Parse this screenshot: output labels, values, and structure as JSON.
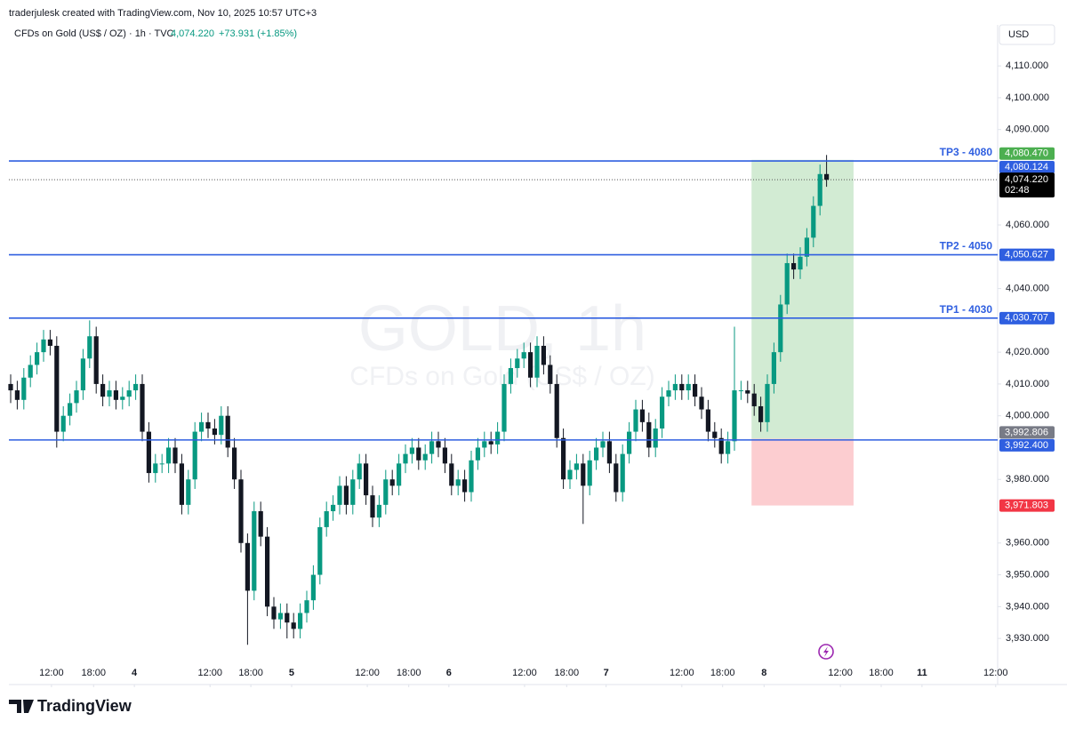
{
  "chart_data": {
    "type": "candlestick",
    "credit": "traderjulesk created with TradingView.com, Nov 10, 2025 10:57 UTC+3",
    "symbol": "CFDs on Gold (US$ / OZ) · 1h · TVC",
    "last": "4,074.220",
    "change": "+73.931 (+1.85%)",
    "currency": "USD",
    "watermark": "GOLD, 1h",
    "watermark_sub": "CFDs on Gold (US$ / OZ)",
    "brand": "TradingView",
    "up_color": "#089981",
    "down_color": "#131722",
    "level_color": "#2f5fe0",
    "ylim": [
      3915.5,
      4122.9
    ],
    "yticks": [
      {
        "value": 4110,
        "label": "4,110.000"
      },
      {
        "value": 4100,
        "label": "4,100.000"
      },
      {
        "value": 4090,
        "label": "4,090.000"
      },
      {
        "value": 4060,
        "label": "4,060.000"
      },
      {
        "value": 4040,
        "label": "4,040.000"
      },
      {
        "value": 4020,
        "label": "4,020.000"
      },
      {
        "value": 4010,
        "label": "4,010.000"
      },
      {
        "value": 4000,
        "label": "4,000.000"
      },
      {
        "value": 3980,
        "label": "3,980.000"
      },
      {
        "value": 3960,
        "label": "3,960.000"
      },
      {
        "value": 3950,
        "label": "3,950.000"
      },
      {
        "value": 3940,
        "label": "3,940.000"
      },
      {
        "value": 3930,
        "label": "3,930.000"
      }
    ],
    "xlim": [
      -0.3,
      150
    ],
    "xticks": [
      {
        "value": 6.2,
        "label": "12:00"
      },
      {
        "value": 12.6,
        "label": "18:00"
      },
      {
        "value": 18.8,
        "label": "4"
      },
      {
        "value": 30.3,
        "label": "12:00"
      },
      {
        "value": 36.5,
        "label": "18:00"
      },
      {
        "value": 42.7,
        "label": "5"
      },
      {
        "value": 54.2,
        "label": "12:00"
      },
      {
        "value": 60.5,
        "label": "18:00"
      },
      {
        "value": 66.6,
        "label": "6"
      },
      {
        "value": 78.1,
        "label": "12:00"
      },
      {
        "value": 84.5,
        "label": "18:00"
      },
      {
        "value": 90.5,
        "label": "7"
      },
      {
        "value": 102,
        "label": "12:00"
      },
      {
        "value": 108.2,
        "label": "18:00"
      },
      {
        "value": 114.5,
        "label": "8"
      },
      {
        "value": 126.1,
        "label": "12:00"
      },
      {
        "value": 132.3,
        "label": "18:00"
      },
      {
        "value": 138.5,
        "label": "11"
      },
      {
        "value": 149.7,
        "label": "12:00"
      }
    ],
    "levels": [
      {
        "name": "TP3 - 4080",
        "value": 4080.124,
        "label": "4,080.124"
      },
      {
        "name": "TP2 - 4050",
        "value": 4050.627,
        "label": "4,050.627"
      },
      {
        "name": "TP1 - 4030",
        "value": 4030.707,
        "label": "4,030.707"
      },
      {
        "value": 3992.4,
        "label": "3,992.400"
      }
    ],
    "position": {
      "x": [
        112.6,
        128.1
      ],
      "target": 4080.47,
      "target_label": "4,080.470",
      "target_color": "#4caf50",
      "entry": 3992.806,
      "entry_label": "3,992.806",
      "entry_color": "#787b86",
      "stop": 3971.803,
      "stop_label": "3,971.803",
      "stop_color": "#f23645"
    },
    "last_price": {
      "value": 4074.22,
      "label": "4,074.220",
      "countdown": "02:48"
    },
    "ohlc": [
      [
        4010,
        4013,
        4004,
        4008
      ],
      [
        4008,
        4011,
        4002,
        4005
      ],
      [
        4005,
        4015,
        4002,
        4012
      ],
      [
        4012,
        4019,
        4009,
        4016
      ],
      [
        4016,
        4023,
        4013,
        4020
      ],
      [
        4020,
        4027,
        4017,
        4024
      ],
      [
        4024,
        4027,
        4019,
        4022
      ],
      [
        4022,
        4025,
        3990,
        3995
      ],
      [
        3995,
        4003,
        3992,
        4000
      ],
      [
        4000,
        4007,
        3997,
        4004
      ],
      [
        4004,
        4011,
        4001,
        4008
      ],
      [
        4008,
        4021,
        4005,
        4018
      ],
      [
        4018,
        4030,
        4015,
        4025
      ],
      [
        4025,
        4028,
        4007,
        4010
      ],
      [
        4010,
        4013,
        4003,
        4006
      ],
      [
        4006,
        4011,
        4003,
        4008
      ],
      [
        4008,
        4011,
        4002,
        4005
      ],
      [
        4005,
        4009,
        4002,
        4006
      ],
      [
        4006,
        4011,
        4003,
        4008
      ],
      [
        4008,
        4013,
        4005,
        4010
      ],
      [
        4010,
        4013,
        3992,
        3995
      ],
      [
        3995,
        3998,
        3979,
        3982
      ],
      [
        3982,
        3988,
        3979,
        3985
      ],
      [
        3985,
        3988,
        3982,
        3985
      ],
      [
        3985,
        3993,
        3982,
        3990
      ],
      [
        3990,
        3993,
        3982,
        3985
      ],
      [
        3985,
        3988,
        3969,
        3972
      ],
      [
        3972,
        3983,
        3969,
        3980
      ],
      [
        3980,
        3998,
        3977,
        3995
      ],
      [
        3995,
        4001,
        3992,
        3998
      ],
      [
        3998,
        4001,
        3993,
        3996
      ],
      [
        3996,
        3999,
        3991,
        3994
      ],
      [
        3994,
        4003,
        3991,
        4000
      ],
      [
        4000,
        4003,
        3987,
        3990
      ],
      [
        3990,
        3993,
        3977,
        3980
      ],
      [
        3980,
        3983,
        3957,
        3960
      ],
      [
        3960,
        3963,
        3928,
        3945
      ],
      [
        3945,
        3973,
        3942,
        3970
      ],
      [
        3970,
        3973,
        3959,
        3962
      ],
      [
        3962,
        3965,
        3937,
        3940
      ],
      [
        3940,
        3943,
        3933,
        3936
      ],
      [
        3936,
        3941,
        3933,
        3938
      ],
      [
        3938,
        3941,
        3930,
        3935
      ],
      [
        3935,
        3938,
        3930,
        3933
      ],
      [
        3933,
        3941,
        3930,
        3938
      ],
      [
        3938,
        3945,
        3935,
        3942
      ],
      [
        3942,
        3953,
        3939,
        3950
      ],
      [
        3950,
        3968,
        3947,
        3965
      ],
      [
        3965,
        3973,
        3962,
        3970
      ],
      [
        3970,
        3975,
        3967,
        3972
      ],
      [
        3972,
        3981,
        3969,
        3978
      ],
      [
        3978,
        3981,
        3969,
        3972
      ],
      [
        3972,
        3983,
        3969,
        3980
      ],
      [
        3980,
        3988,
        3977,
        3985
      ],
      [
        3985,
        3988,
        3972,
        3975
      ],
      [
        3975,
        3978,
        3965,
        3968
      ],
      [
        3968,
        3975,
        3965,
        3972
      ],
      [
        3972,
        3983,
        3969,
        3980
      ],
      [
        3980,
        3983,
        3975,
        3978
      ],
      [
        3978,
        3988,
        3975,
        3985
      ],
      [
        3985,
        3991,
        3982,
        3988
      ],
      [
        3988,
        3993,
        3985,
        3990
      ],
      [
        3990,
        3993,
        3983,
        3986
      ],
      [
        3986,
        3991,
        3983,
        3988
      ],
      [
        3988,
        3995,
        3985,
        3992
      ],
      [
        3992,
        3995,
        3987,
        3990
      ],
      [
        3990,
        3993,
        3982,
        3985
      ],
      [
        3985,
        3988,
        3975,
        3978
      ],
      [
        3978,
        3983,
        3975,
        3980
      ],
      [
        3980,
        3983,
        3973,
        3976
      ],
      [
        3976,
        3989,
        3973,
        3986
      ],
      [
        3986,
        3993,
        3983,
        3990
      ],
      [
        3990,
        3995,
        3987,
        3992
      ],
      [
        3992,
        3995,
        3988,
        3991
      ],
      [
        3991,
        3998,
        3988,
        3995
      ],
      [
        3995,
        4013,
        3992,
        4010
      ],
      [
        4010,
        4018,
        4007,
        4015
      ],
      [
        4015,
        4021,
        4012,
        4018
      ],
      [
        4018,
        4023,
        4015,
        4020
      ],
      [
        4020,
        4023,
        4009,
        4012
      ],
      [
        4012,
        4025,
        4009,
        4022
      ],
      [
        4022,
        4025,
        4013,
        4016
      ],
      [
        4016,
        4019,
        4007,
        4010
      ],
      [
        4010,
        4013,
        3990,
        3993
      ],
      [
        3993,
        3996,
        3977,
        3980
      ],
      [
        3980,
        3986,
        3977,
        3983
      ],
      [
        3983,
        3988,
        3980,
        3985
      ],
      [
        3985,
        3988,
        3966,
        3978
      ],
      [
        3978,
        3989,
        3975,
        3986
      ],
      [
        3986,
        3993,
        3983,
        3990
      ],
      [
        3990,
        3995,
        3987,
        3992
      ],
      [
        3992,
        3995,
        3982,
        3985
      ],
      [
        3985,
        3988,
        3973,
        3976
      ],
      [
        3976,
        3991,
        3973,
        3988
      ],
      [
        3988,
        3998,
        3985,
        3995
      ],
      [
        3995,
        4005,
        3992,
        4002
      ],
      [
        4002,
        4005,
        3995,
        3998
      ],
      [
        3998,
        4001,
        3987,
        3990
      ],
      [
        3990,
        3999,
        3987,
        3996
      ],
      [
        3996,
        4009,
        3993,
        4006
      ],
      [
        4006,
        4011,
        4003,
        4008
      ],
      [
        4008,
        4013,
        4005,
        4010
      ],
      [
        4010,
        4013,
        4005,
        4008
      ],
      [
        4008,
        4013,
        4005,
        4010
      ],
      [
        4010,
        4013,
        4003,
        4006
      ],
      [
        4006,
        4009,
        3999,
        4002
      ],
      [
        4002,
        4005,
        3992,
        3995
      ],
      [
        3995,
        3998,
        3990,
        3993
      ],
      [
        3993,
        3996,
        3985,
        3988
      ],
      [
        3988,
        3995,
        3985,
        3992
      ],
      [
        3992,
        4028,
        3989,
        4008
      ],
      [
        4008,
        4011,
        4005,
        4008
      ],
      [
        4008,
        4011,
        4004,
        4007
      ],
      [
        4007,
        4010,
        4000,
        4003
      ],
      [
        4003,
        4006,
        3995,
        3998
      ],
      [
        3998,
        4013,
        3995,
        4010
      ],
      [
        4010,
        4023,
        4007,
        4020
      ],
      [
        4020,
        4038,
        4017,
        4035
      ],
      [
        4035,
        4051,
        4032,
        4048
      ],
      [
        4048,
        4051,
        4043,
        4046
      ],
      [
        4046,
        4053,
        4043,
        4050
      ],
      [
        4050,
        4059,
        4047,
        4056
      ],
      [
        4056,
        4069,
        4053,
        4066
      ],
      [
        4066,
        4079,
        4063,
        4076
      ],
      [
        4076,
        4082,
        4072,
        4074.22
      ]
    ]
  }
}
